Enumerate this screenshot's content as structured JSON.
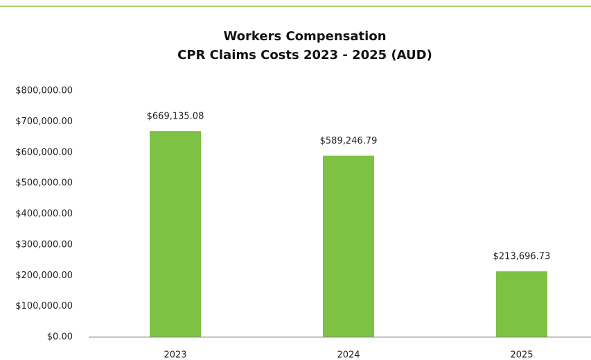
{
  "chart_data": {
    "type": "bar",
    "title": [
      "Workers Compensation",
      "CPR Claims Costs 2023 - 2025 (AUD)"
    ],
    "categories": [
      "2023",
      "2024",
      "2025"
    ],
    "values": [
      669135.08,
      589246.79,
      213696.73
    ],
    "value_labels": [
      "$669,135.08",
      "$589,246.79",
      "$213,696.73"
    ],
    "color": "#7dc242",
    "ylim": [
      0,
      800000
    ],
    "yticks": [
      {
        "value": 0,
        "label": "$0.00"
      },
      {
        "value": 100000,
        "label": "$100,000.00"
      },
      {
        "value": 200000,
        "label": "$200,000.00"
      },
      {
        "value": 300000,
        "label": "$300,000.00"
      },
      {
        "value": 400000,
        "label": "$400,000.00"
      },
      {
        "value": 500000,
        "label": "$500,000.00"
      },
      {
        "value": 600000,
        "label": "$600,000.00"
      },
      {
        "value": 700000,
        "label": "$700,000.00"
      },
      {
        "value": 800000,
        "label": "$800,000.00"
      }
    ],
    "grid": false
  }
}
